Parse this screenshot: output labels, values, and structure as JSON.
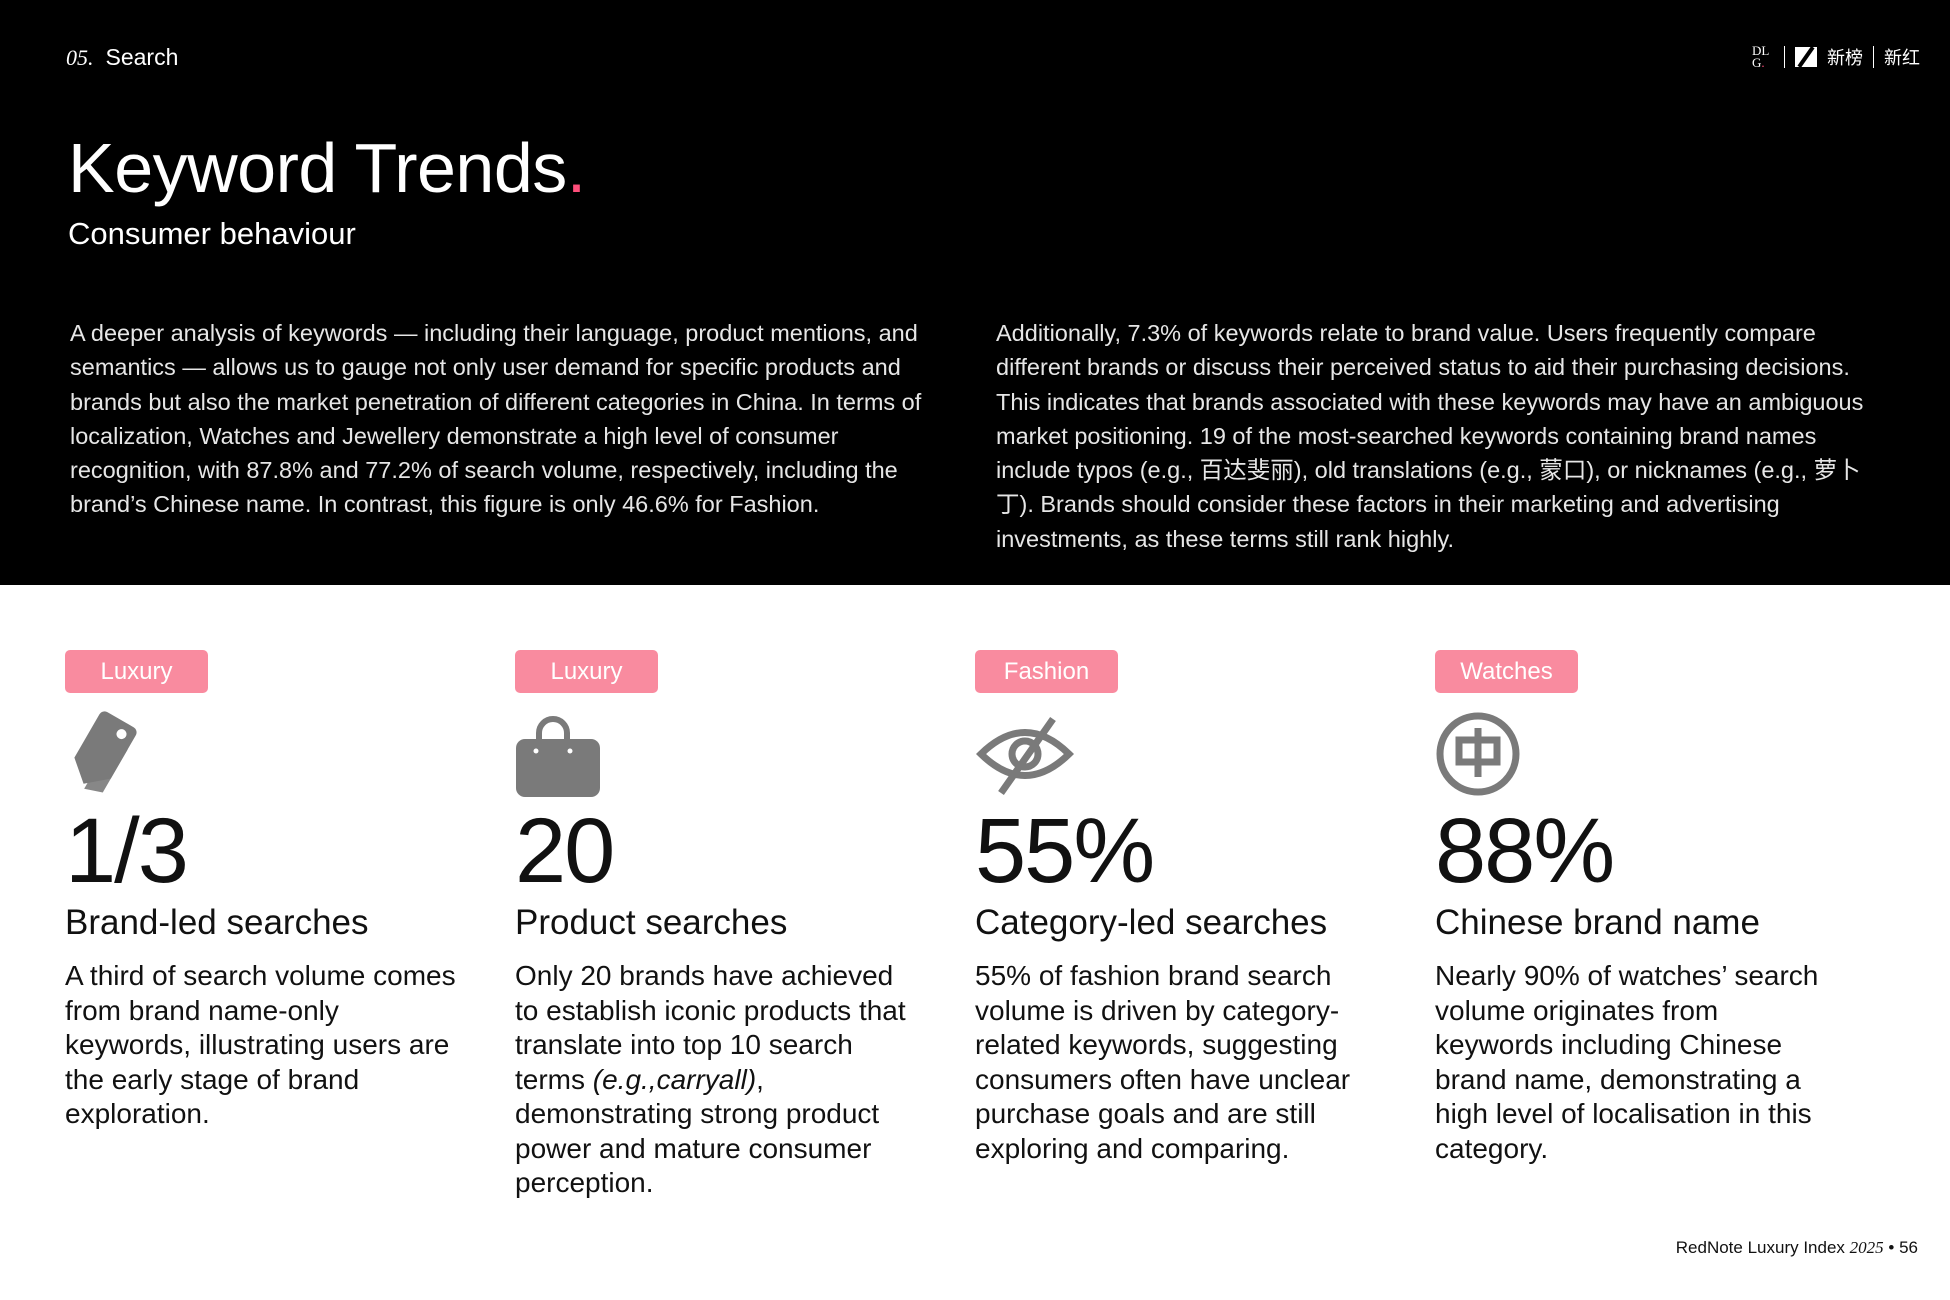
{
  "header": {
    "section_number": "05.",
    "section_name": "Search",
    "logos": [
      "DLG",
      "新榜",
      "新红"
    ]
  },
  "title": "Keyword Trends",
  "title_dot": ".",
  "subtitle": "Consumer behaviour",
  "paragraphs": [
    "A deeper analysis of keywords — including their language, product mentions, and semantics — allows us to gauge not only user demand for specific products and brands but also the market penetration of different categories in China. In terms of localization, Watches and Jewellery demonstrate a high level of consumer recognition, with 87.8% and 77.2% of search volume, respectively, including the brand’s Chinese name. In contrast, this figure is only 46.6% for Fashion.",
    "Additionally, 7.3% of keywords relate to brand value. Users frequently compare different brands or discuss their perceived status to aid their purchasing decisions. This indicates that brands associated with these keywords may have an ambiguous market positioning. 19 of the most-searched keywords containing brand names include typos (e.g., 百达斐丽), old translations (e.g., 蒙口), or nicknames (e.g., 萝卜丁). Brands should consider these factors in their marketing and advertising investments, as these terms still rank highly."
  ],
  "cards": [
    {
      "tag": "Luxury",
      "icon": "price-tags-icon",
      "value": "1/3",
      "heading": "Brand-led searches",
      "text": "A third of search volume comes from brand name-only keywords, illustrating users are the early stage of brand exploration."
    },
    {
      "tag": "Luxury",
      "icon": "shopping-bag-icon",
      "value": "20",
      "heading": "Product searches",
      "text_a": "Only 20 brands have achieved to establish iconic products that translate into top 10 search terms ",
      "text_italic": "(e.g.,carryall)",
      "text_b": ", demonstrating strong product power and mature consumer perception."
    },
    {
      "tag": "Fashion",
      "icon": "eye-slash-icon",
      "value": "55%",
      "heading": "Category-led searches",
      "text": "55% of fashion brand search volume is driven by category-related keywords, suggesting consumers often have unclear purchase goals and are still exploring and comparing."
    },
    {
      "tag": "Watches",
      "icon": "chinese-character-icon",
      "icon_char": "中",
      "value": "88%",
      "heading": "Chinese brand name",
      "text": "Nearly 90% of watches’ search volume originates from keywords including Chinese brand name, demonstrating a high level of localisation in this category."
    }
  ],
  "footer": {
    "label": "RedNote Luxury Index",
    "year": "2025",
    "separator": "•",
    "page": "56"
  },
  "colors": {
    "accent": "#ff4f7b",
    "tag": "#f98b9f",
    "icon": "#7a7a7a"
  }
}
